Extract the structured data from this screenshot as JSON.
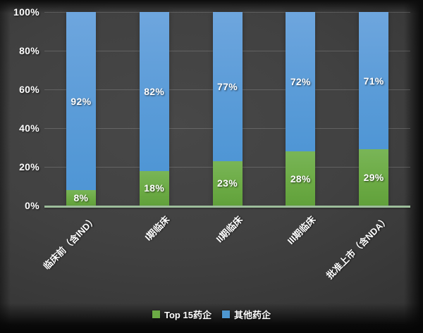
{
  "chart_data": {
    "type": "bar",
    "variant": "100-percent-stacked-column",
    "title": "",
    "categories": [
      "临床前（含IND）",
      "I期临床",
      "II期临床",
      "III期临床",
      "批准上市（含NDA）"
    ],
    "series": [
      {
        "name": "Top 15药企",
        "color": "#6CAB45",
        "values": [
          8,
          18,
          23,
          28,
          29
        ],
        "labels": [
          "8%",
          "18%",
          "23%",
          "28%",
          "29%"
        ]
      },
      {
        "name": "其他药企",
        "color": "#4E97D1",
        "values": [
          92,
          82,
          77,
          72,
          71
        ],
        "labels": [
          "92%",
          "82%",
          "77%",
          "72%",
          "71%"
        ]
      }
    ],
    "y_axis": {
      "ticks": [
        "0%",
        "20%",
        "40%",
        "60%",
        "80%",
        "100%"
      ],
      "min": 0,
      "max": 100
    },
    "grid": true,
    "legend_position": "bottom"
  },
  "colors": {
    "background_center": "#444444",
    "background_edge": "#1a1a1a",
    "axis_line": "#9DBD9B",
    "gridline": "rgba(255,255,255,0.17)",
    "label_text": "#FFFFFF"
  }
}
